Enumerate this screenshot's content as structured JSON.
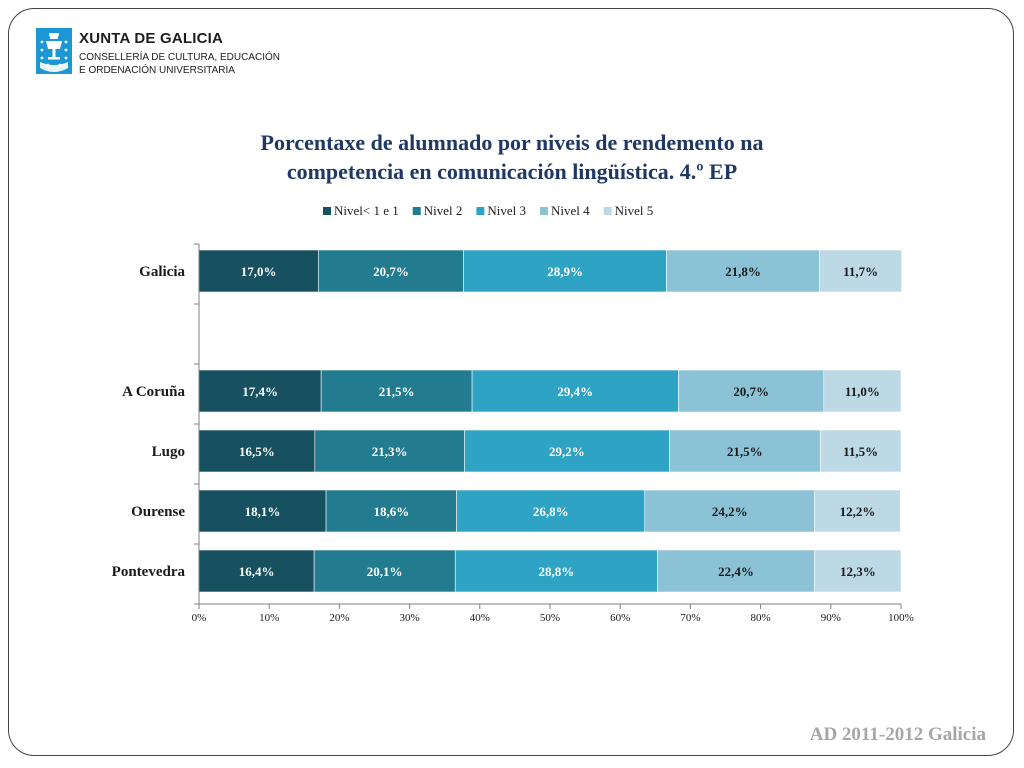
{
  "header": {
    "org_title": "XUNTA DE GALICIA",
    "org_line1": "CONSELLERÍA DE CULTURA, EDUCACIÓN",
    "org_line2": "E ORDENACIÓN UNIVERSITARIA"
  },
  "footer": {
    "text": "AD 2011-2012 Galicia"
  },
  "chart_data": {
    "type": "bar",
    "orientation": "horizontal",
    "stacked": "percent",
    "title": "Porcentaxe de alumnado por niveis de rendemento na competencia en comunicación lingüística. 4.º EP",
    "title_lines": [
      "Porcentaxe de alumnado por niveis de rendemento na",
      "competencia en comunicación lingüística. 4.º EP"
    ],
    "categories": [
      "Galicia",
      "",
      "A Coruña",
      "Lugo",
      "Ourense",
      "Pontevedra"
    ],
    "series": [
      {
        "name": "Nivel< 1 e 1",
        "color": "#17505f",
        "label_color": "#ffffff",
        "values": [
          17.0,
          null,
          17.4,
          16.5,
          18.1,
          16.4
        ]
      },
      {
        "name": "Nivel 2",
        "color": "#237b8f",
        "label_color": "#ffffff",
        "values": [
          20.7,
          null,
          21.5,
          21.3,
          18.6,
          20.1
        ]
      },
      {
        "name": "Nivel 3",
        "color": "#2fa3c4",
        "label_color": "#ffffff",
        "values": [
          28.9,
          null,
          29.4,
          29.2,
          26.8,
          28.8
        ]
      },
      {
        "name": "Nivel 4",
        "color": "#8cc2d6",
        "label_color": "#1a1a1a",
        "values": [
          21.8,
          null,
          20.7,
          21.5,
          24.2,
          22.4
        ]
      },
      {
        "name": "Nivel 5",
        "color": "#bcd9e5",
        "label_color": "#1a1a1a",
        "values": [
          11.7,
          null,
          11.0,
          11.5,
          12.2,
          12.3
        ]
      }
    ],
    "data_labels": [
      [
        "17,0%",
        "20,7%",
        "28,9%",
        "21,8%",
        "11,7%"
      ],
      null,
      [
        "17,4%",
        "21,5%",
        "29,4%",
        "20,7%",
        "11,0%"
      ],
      [
        "16,5%",
        "21,3%",
        "29,2%",
        "21,5%",
        "11,5%"
      ],
      [
        "18,1%",
        "18,6%",
        "26,8%",
        "24,2%",
        "12,2%"
      ],
      [
        "16,4%",
        "20,1%",
        "28,8%",
        "22,4%",
        "12,3%"
      ]
    ],
    "xlim": [
      0,
      100
    ],
    "xticks": [
      "0%",
      "10%",
      "20%",
      "30%",
      "40%",
      "50%",
      "60%",
      "70%",
      "80%",
      "90%",
      "100%"
    ],
    "xlabel": "",
    "ylabel": "",
    "grid": false,
    "legend_position": "top"
  }
}
